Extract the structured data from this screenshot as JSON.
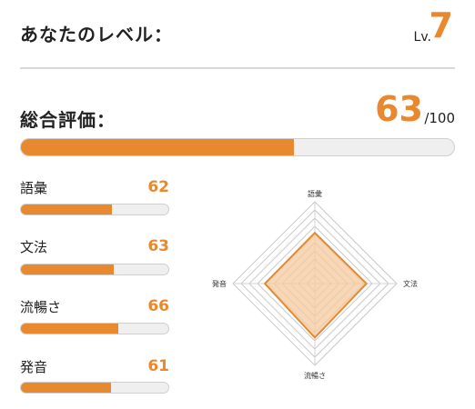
{
  "level": {
    "label": "あなたのレベル：",
    "prefix": "Lv.",
    "value": "7"
  },
  "overall": {
    "label": "総合評価：",
    "score": "63",
    "max_text": "/100",
    "fraction": 0.63
  },
  "skills": [
    {
      "label": "語彙",
      "value": "62",
      "fraction": 0.62
    },
    {
      "label": "文法",
      "value": "63",
      "fraction": 0.63
    },
    {
      "label": "流暢さ",
      "value": "66",
      "fraction": 0.66
    },
    {
      "label": "発音",
      "value": "61",
      "fraction": 0.61
    }
  ],
  "radar": {
    "axes": [
      "語彙",
      "文法",
      "流暢さ",
      "発音"
    ],
    "values": [
      62,
      63,
      66,
      61
    ],
    "max": 100
  },
  "colors": {
    "accent": "#E8892F",
    "track": "#efefef",
    "fill_translucent": "#F6C99E"
  }
}
